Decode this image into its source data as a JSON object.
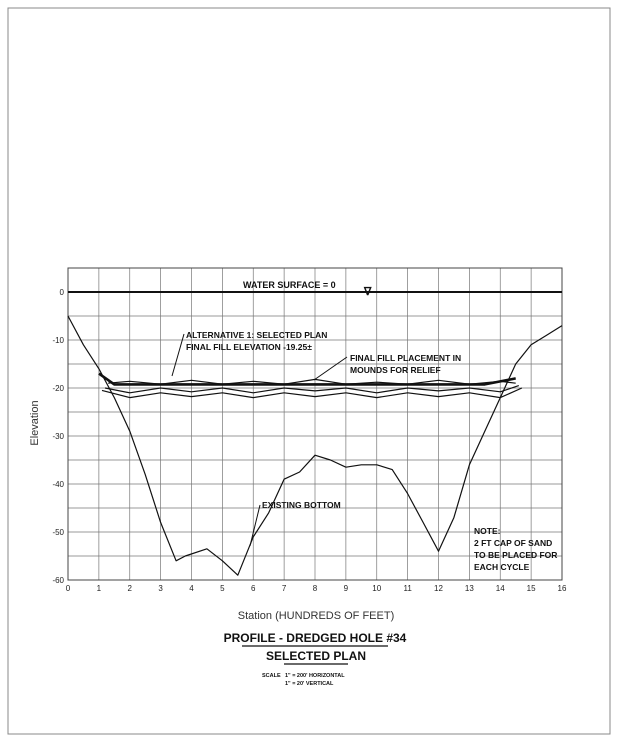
{
  "chart_data": {
    "type": "line",
    "xlabel": "Station (HUNDREDS OF FEET)",
    "ylabel": "Elevation",
    "xlim": [
      0,
      16
    ],
    "ylim": [
      -60,
      5
    ],
    "x_ticks": [
      "0",
      "1",
      "2",
      "3",
      "4",
      "5",
      "6",
      "7",
      "8",
      "9",
      "10",
      "11",
      "12",
      "13",
      "14",
      "15",
      "16"
    ],
    "y_ticks": [
      "0",
      "-10",
      "-20",
      "-30",
      "-40",
      "-50",
      "-60"
    ],
    "grid": true,
    "titles": {
      "main": "PROFILE - DREDGED HOLE #34",
      "sub": "SELECTED PLAN",
      "scale_label": "SCALE",
      "scale_h": "1\" = 200' HORIZONTAL",
      "scale_v": "1\" = 20' VERTICAL"
    },
    "annotations": {
      "water_surface": "WATER SURFACE = 0",
      "water_symbol": "∇",
      "alt1_line1": "ALTERNATIVE 1: SELECTED PLAN",
      "alt1_line2": "FINAL FILL ELEVATION -19.25±",
      "mounds_line1": "FINAL FILL PLACEMENT IN",
      "mounds_line2": "MOUNDS FOR RELIEF",
      "existing": "EXISTING BOTTOM",
      "note_1": "NOTE:",
      "note_2": "2 FT CAP OF SAND",
      "note_3": "TO BE PLACED FOR",
      "note_4": "EACH CYCLE"
    },
    "series": [
      {
        "x": [
          0,
          0.5,
          1,
          1.5,
          2,
          2.5,
          3,
          3.5,
          3.8,
          4.5,
          5,
          5.5,
          6,
          6.5,
          7,
          7.5,
          8,
          8.5,
          9,
          9.5,
          10,
          10.5,
          11,
          11.5,
          12,
          12.5,
          13,
          13.5,
          14,
          14.5,
          15,
          15.5,
          16
        ],
        "y": [
          -5,
          -11,
          -16,
          -22,
          -29,
          -38,
          -48,
          -56,
          -55,
          -53.5,
          -56,
          -59,
          -51,
          -46,
          -39,
          -37.5,
          -34,
          -35,
          -36.5,
          -36,
          -36,
          -37,
          -42,
          -48,
          -54,
          -47,
          -36,
          -29,
          -22,
          -15,
          -11,
          -9,
          -7
        ]
      },
      {
        "x": [
          1,
          1.5,
          2.5,
          3.5,
          4.5,
          5.5,
          6.5,
          7.5,
          8,
          8.5,
          9.5,
          10.5,
          11.5,
          12.5,
          13.5,
          14.5
        ],
        "y": [
          -17,
          -19.25,
          -19.25,
          -19.25,
          -19.25,
          -19.25,
          -19.25,
          -19.25,
          -19.25,
          -19.25,
          -19.25,
          -19.25,
          -19.25,
          -19.25,
          -19.25,
          -18
        ]
      },
      {
        "x": [
          1.3,
          2,
          3,
          4,
          5,
          6,
          7,
          8,
          9,
          10,
          11,
          12,
          13,
          14,
          14.5
        ],
        "y": [
          -19,
          -18.6,
          -19.2,
          -18.4,
          -19.2,
          -18.6,
          -19.2,
          -18.2,
          -19.2,
          -18.8,
          -19.2,
          -18.4,
          -19.2,
          -18.6,
          -19
        ]
      },
      {
        "x": [
          1.2,
          2,
          3,
          4,
          5,
          6,
          7,
          8,
          9,
          10,
          11,
          12,
          13,
          14,
          14.6
        ],
        "y": [
          -20,
          -21,
          -20,
          -20.8,
          -20,
          -21,
          -20,
          -20.6,
          -20,
          -21,
          -20,
          -20.6,
          -20,
          -20.8,
          -19.5
        ]
      },
      {
        "x": [
          1.1,
          2,
          3,
          4,
          5,
          6,
          7,
          8,
          9,
          10,
          11,
          12,
          13,
          14,
          14.7
        ],
        "y": [
          -20.5,
          -22,
          -21,
          -21.8,
          -21,
          -22,
          -21,
          -21.8,
          -21,
          -22,
          -21,
          -21.8,
          -21,
          -22,
          -20
        ]
      },
      {
        "x": [
          0,
          16
        ],
        "y": [
          0,
          0
        ]
      }
    ]
  }
}
